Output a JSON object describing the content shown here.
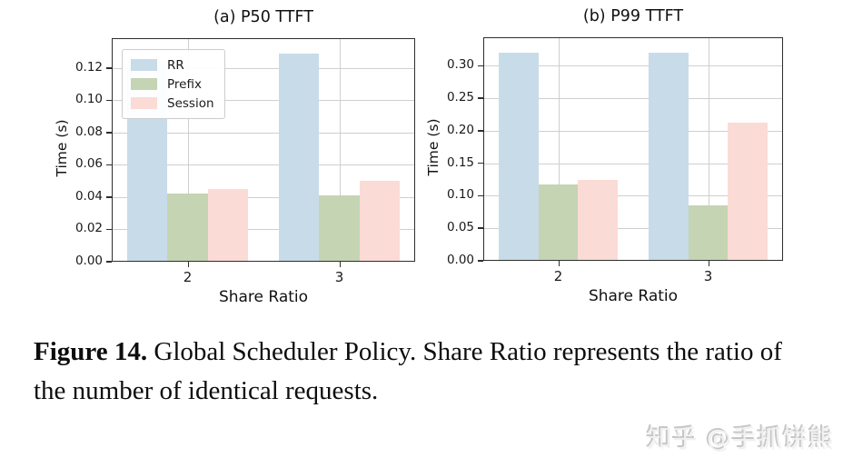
{
  "chart_data": [
    {
      "type": "bar",
      "id": "p50",
      "title": "(a) P50 TTFT",
      "xlabel": "Share Ratio",
      "ylabel": "Time (s)",
      "categories": [
        "2",
        "3"
      ],
      "series": [
        {
          "name": "RR",
          "color": "#c8dbe8",
          "values": [
            0.125,
            0.129
          ]
        },
        {
          "name": "Prefix",
          "color": "#c5d4b3",
          "values": [
            0.042,
            0.041
          ]
        },
        {
          "name": "Session",
          "color": "#fbdbd5",
          "values": [
            0.045,
            0.05
          ]
        }
      ],
      "ytick_labels": [
        "0.00",
        "0.02",
        "0.04",
        "0.06",
        "0.08",
        "0.10",
        "0.12"
      ],
      "ylim": [
        0,
        0.1385
      ],
      "grid": true,
      "legend_position": "top-left",
      "legend_entries": [
        "RR",
        "Prefix",
        "Session"
      ]
    },
    {
      "type": "bar",
      "id": "p99",
      "title": "(b) P99 TTFT",
      "xlabel": "Share Ratio",
      "ylabel": "Time (s)",
      "categories": [
        "2",
        "3"
      ],
      "series": [
        {
          "name": "RR",
          "color": "#c8dbe8",
          "values": [
            0.32,
            0.32
          ]
        },
        {
          "name": "Prefix",
          "color": "#c5d4b3",
          "values": [
            0.117,
            0.086
          ]
        },
        {
          "name": "Session",
          "color": "#fbdbd5",
          "values": [
            0.125,
            0.213
          ]
        }
      ],
      "ytick_labels": [
        "0.00",
        "0.05",
        "0.10",
        "0.15",
        "0.20",
        "0.25",
        "0.30"
      ],
      "ylim": [
        0,
        0.344
      ],
      "grid": true,
      "legend_position": "top-right",
      "legend_entries": [
        "RR",
        "Prefix",
        "Session"
      ]
    }
  ],
  "caption": {
    "label": "Figure 14.",
    "text": "Global Scheduler Policy. Share Ratio represents the ratio of the number of identical requests."
  },
  "watermark": {
    "text": "知乎 @手抓饼熊"
  },
  "colors": {
    "rr": "#c8dbe8",
    "prefix": "#c5d4b3",
    "session": "#fbdbd5",
    "grid": "#cfcfcf",
    "spine": "#2e2e2e"
  }
}
